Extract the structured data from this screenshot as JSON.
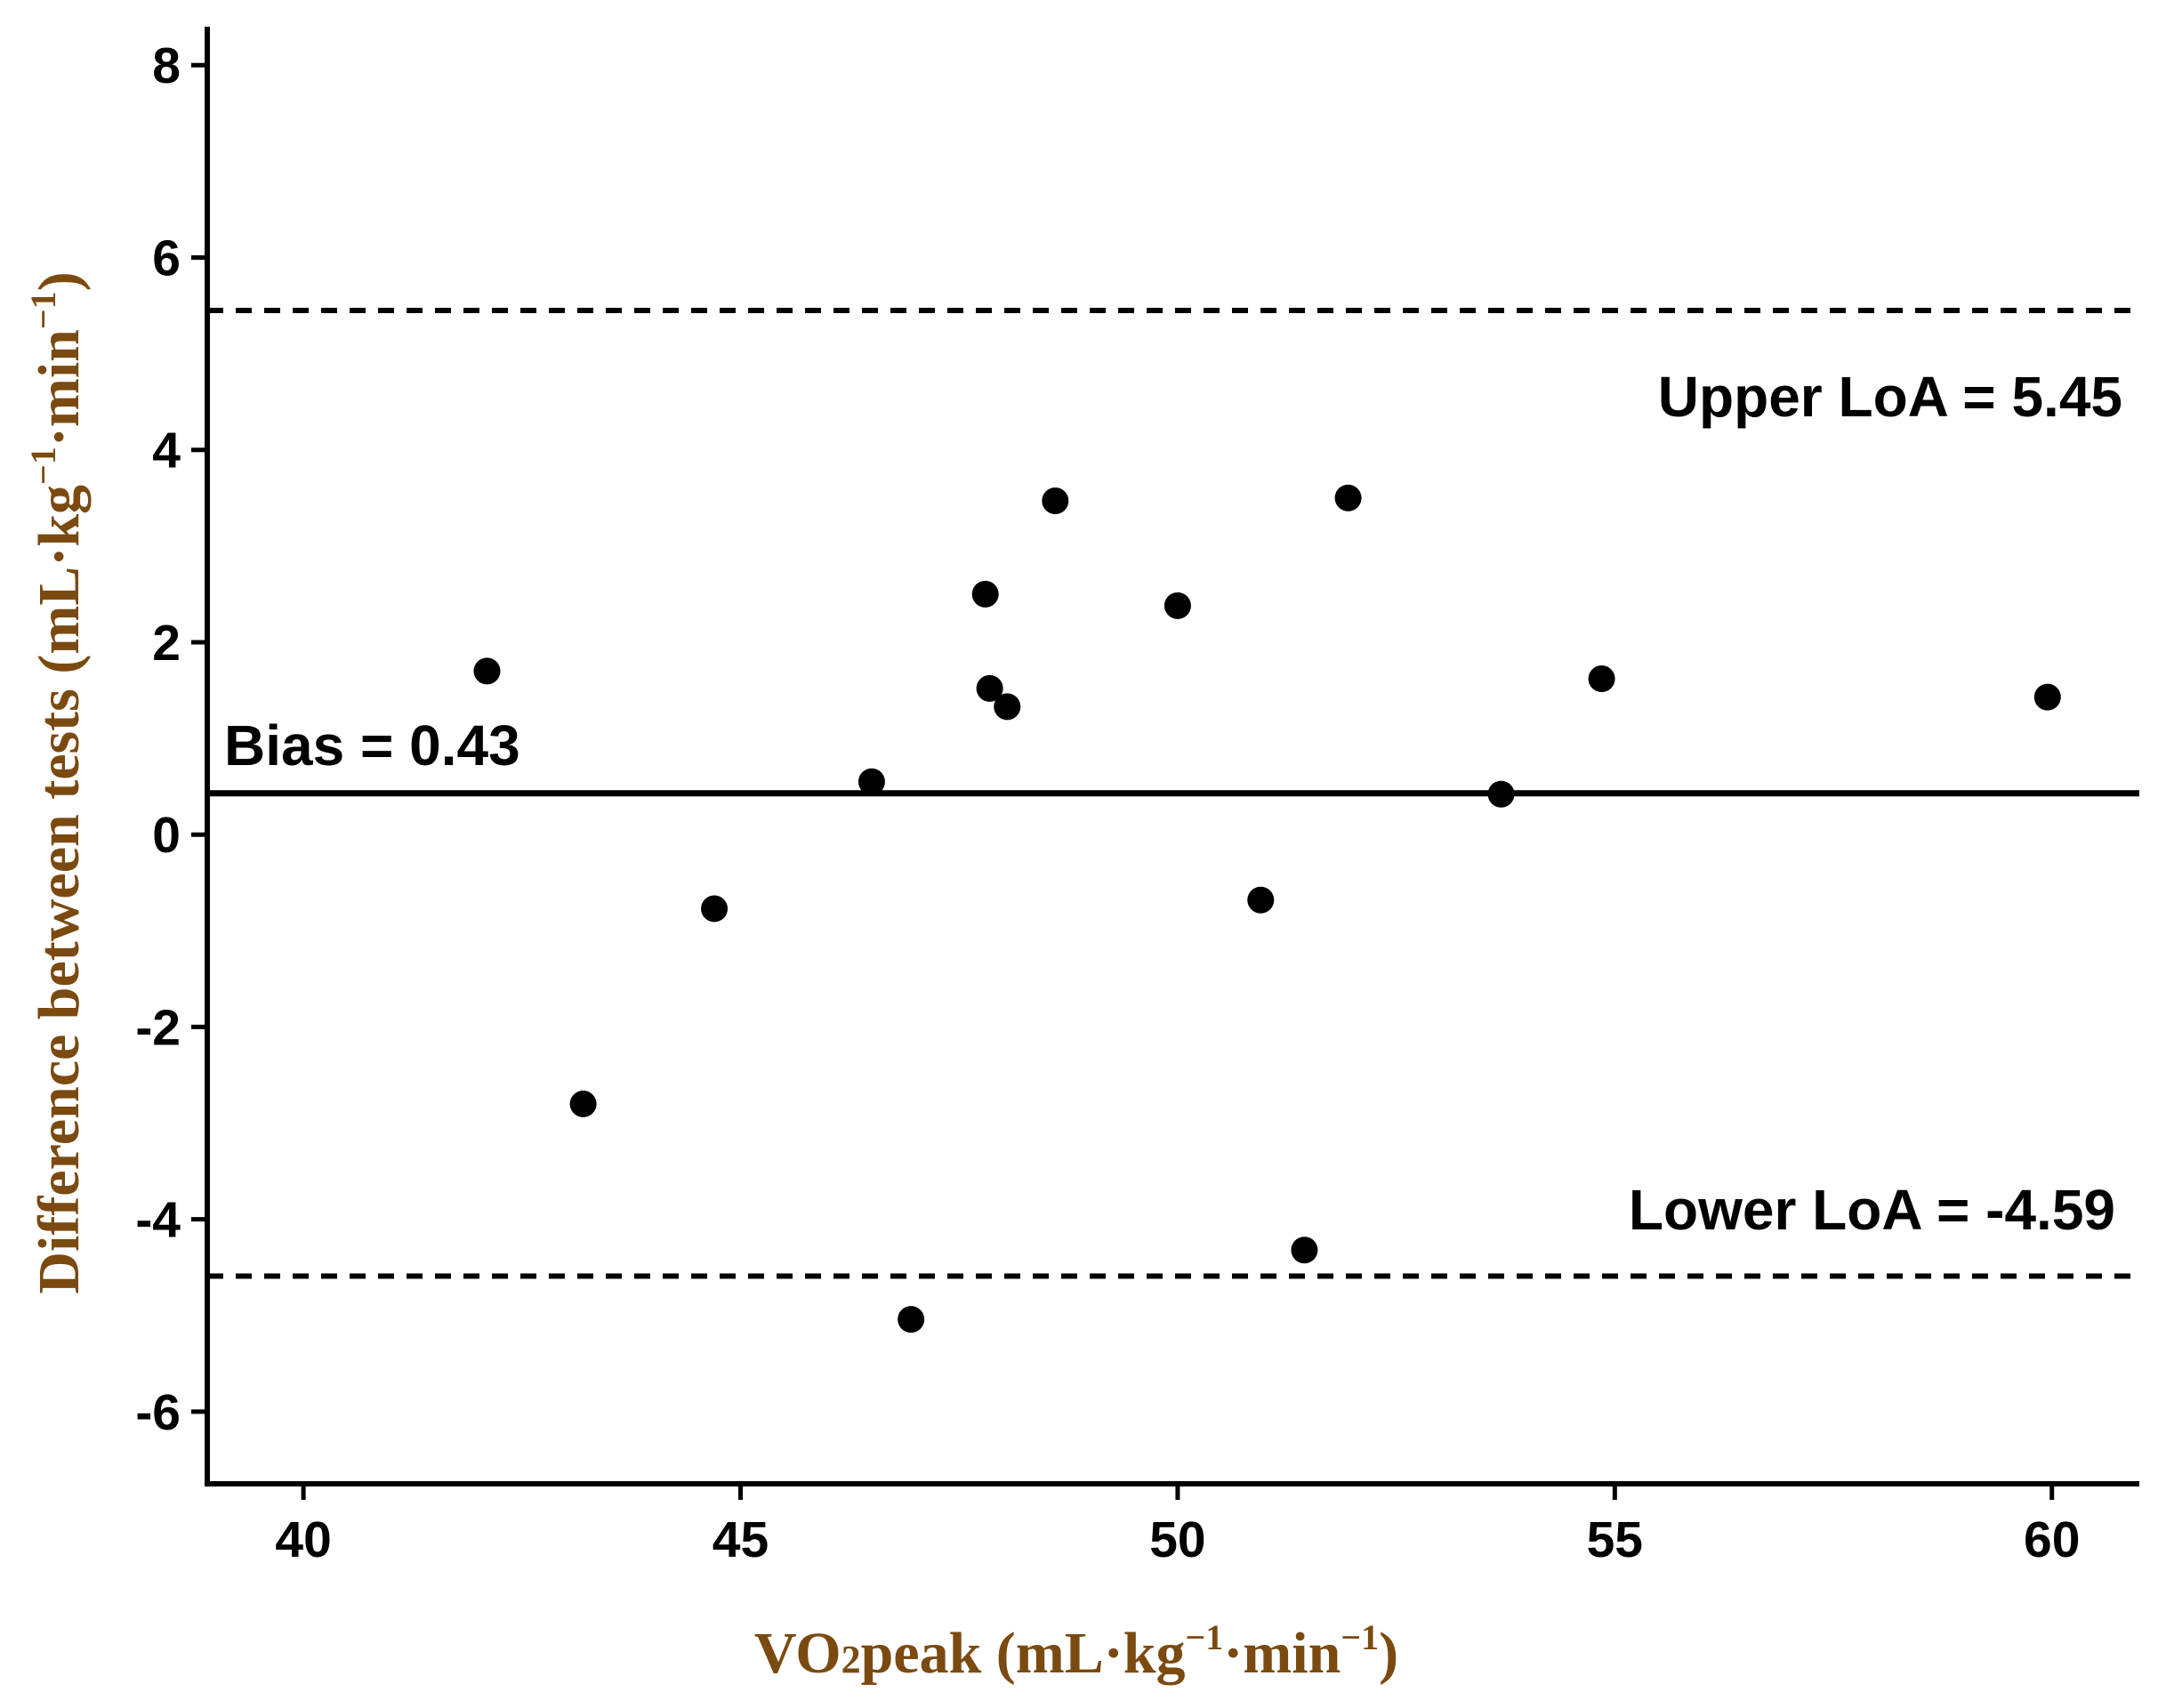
{
  "chart_data": {
    "type": "scatter",
    "title": "",
    "xlabel": {
      "prefix": "VO",
      "subscript": "2",
      "main": "peak (mL·kg",
      "sup1": "−1",
      "mid": "·min",
      "sup2": "−1",
      "suffix": ")"
    },
    "ylabel": {
      "main": "Difference between tests (mL·kg",
      "sup1": "−1",
      "mid": "·min",
      "sup2": "−1",
      "suffix": ")"
    },
    "xlim": [
      38.9,
      61
    ],
    "ylim": [
      -6.75,
      8.4
    ],
    "xticks": [
      40,
      45,
      50,
      55,
      60
    ],
    "yticks": [
      -6,
      -4,
      -2,
      0,
      2,
      4,
      6,
      8
    ],
    "grid": false,
    "points": [
      {
        "x": 42.1,
        "y": 1.7
      },
      {
        "x": 43.2,
        "y": -2.8
      },
      {
        "x": 44.7,
        "y": -0.77
      },
      {
        "x": 46.5,
        "y": 0.55
      },
      {
        "x": 46.95,
        "y": -5.04
      },
      {
        "x": 47.8,
        "y": 2.5
      },
      {
        "x": 47.85,
        "y": 1.52
      },
      {
        "x": 48.05,
        "y": 1.33
      },
      {
        "x": 48.6,
        "y": 3.47
      },
      {
        "x": 50.0,
        "y": 2.38
      },
      {
        "x": 50.95,
        "y": -0.68
      },
      {
        "x": 51.45,
        "y": -4.32
      },
      {
        "x": 51.95,
        "y": 3.5
      },
      {
        "x": 53.7,
        "y": 0.42
      },
      {
        "x": 54.85,
        "y": 1.62
      },
      {
        "x": 59.95,
        "y": 1.43
      }
    ],
    "reference_lines": {
      "bias": {
        "value": 0.43,
        "label": "Bias = 0.43",
        "style": "solid"
      },
      "upper_loa": {
        "value": 5.45,
        "label": "Upper LoA = 5.45",
        "style": "dashed"
      },
      "lower_loa": {
        "value": -4.59,
        "label": "Lower LoA = -4.59",
        "style": "dashed"
      }
    },
    "colors": {
      "points": "#000000",
      "axis": "#000000",
      "axis_title": "#7a4a10"
    }
  }
}
